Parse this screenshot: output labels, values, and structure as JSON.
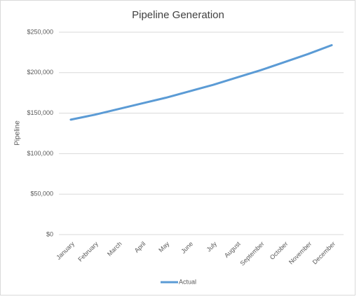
{
  "chart_data": {
    "type": "line",
    "title": "Pipeline Generation",
    "y_label": "Pipeline",
    "categories": [
      "January",
      "February",
      "March",
      "April",
      "May",
      "June",
      "July",
      "August",
      "September",
      "October",
      "November",
      "December"
    ],
    "series": [
      {
        "name": "Actual",
        "color": "#5b9bd5",
        "values": [
          142000,
          148000,
          155000,
          162000,
          169000,
          177000,
          185000,
          194000,
          203000,
          213000,
          223000,
          234000
        ]
      }
    ],
    "ylim": [
      0,
      250000
    ],
    "yticks": [
      {
        "value": 0,
        "label": "$0"
      },
      {
        "value": 50000,
        "label": "$50,000"
      },
      {
        "value": 100000,
        "label": "$100,000"
      },
      {
        "value": 150000,
        "label": "$150,000"
      },
      {
        "value": 200000,
        "label": "$200,000"
      },
      {
        "value": 250000,
        "label": "$250,000"
      }
    ],
    "grid": true,
    "legend": "bottom"
  }
}
